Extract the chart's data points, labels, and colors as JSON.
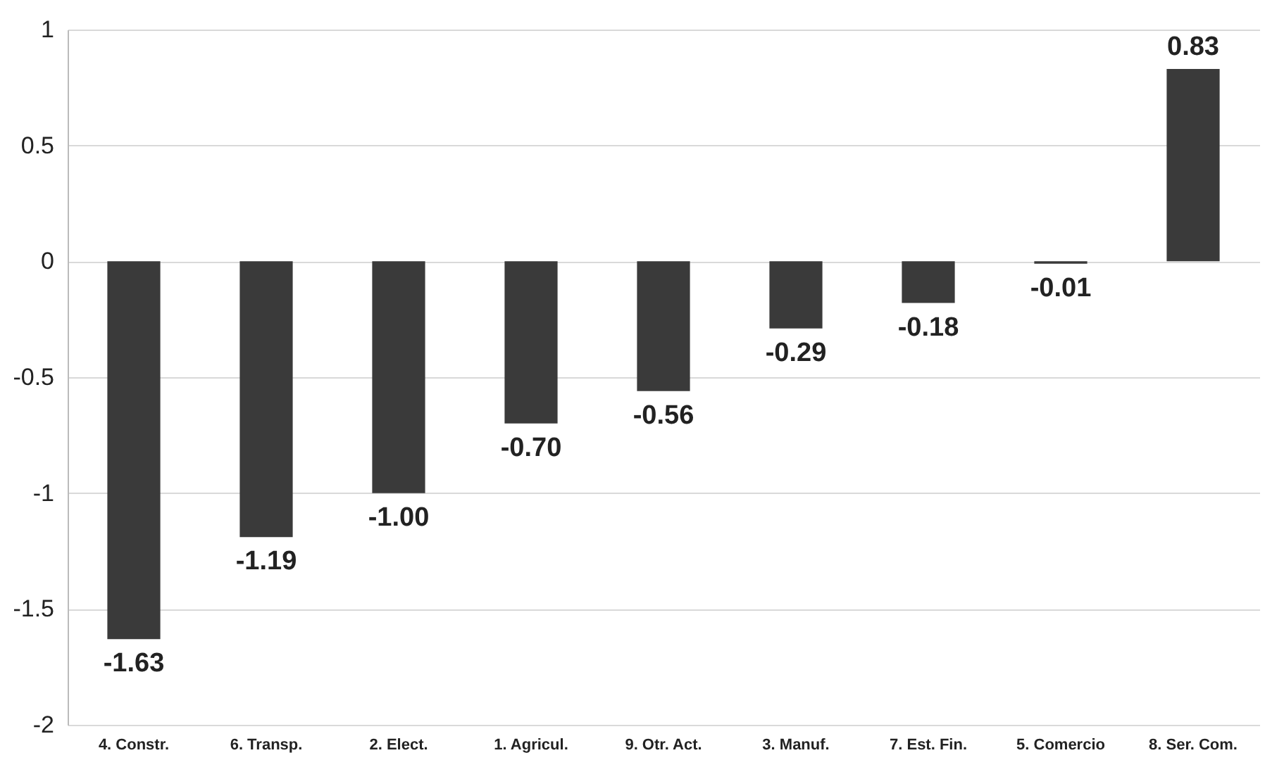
{
  "chart_data": {
    "type": "bar",
    "categories": [
      "4. Constr.",
      "6. Transp.",
      "2. Elect.",
      "1. Agricul.",
      "9. Otr. Act.",
      "3. Manuf.",
      "7. Est. Fin.",
      "5. Comercio",
      "8. Ser. Com."
    ],
    "values": [
      -1.63,
      -1.19,
      -1.0,
      -0.7,
      -0.56,
      -0.29,
      -0.18,
      -0.01,
      0.83
    ],
    "value_labels": [
      "-1.63",
      "-1.19",
      "-1.00",
      "-0.70",
      "-0.56",
      "-0.29",
      "-0.18",
      "-0.01",
      "0.83"
    ],
    "color": "#3a3a3a",
    "ylim": [
      -2,
      1
    ],
    "yticks": [
      -2,
      {
        "value": -1.5,
        "label": "-1.5"
      },
      -1,
      {
        "value": -0.5,
        "label": "-0.5"
      },
      0,
      {
        "value": 0.5,
        "label": "0.5"
      },
      1
    ],
    "grid": "y"
  }
}
